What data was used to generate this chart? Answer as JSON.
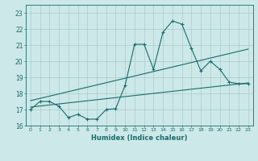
{
  "xlabel": "Humidex (Indice chaleur)",
  "bg_color": "#cce8e8",
  "grid_color": "#aacccc",
  "line_color": "#1a6b6b",
  "xlim": [
    -0.5,
    23.5
  ],
  "ylim": [
    16.0,
    23.5
  ],
  "yticks": [
    16,
    17,
    18,
    19,
    20,
    21,
    22,
    23
  ],
  "xticks": [
    0,
    1,
    2,
    3,
    4,
    5,
    6,
    7,
    8,
    9,
    10,
    11,
    12,
    13,
    14,
    15,
    16,
    17,
    18,
    19,
    20,
    21,
    22,
    23
  ],
  "curve1_x": [
    0,
    1,
    2,
    3,
    4,
    5,
    6,
    7,
    8,
    9,
    10,
    11,
    12,
    13,
    14,
    15,
    16,
    17,
    18,
    19,
    20,
    21,
    22,
    23
  ],
  "curve1_y": [
    17.0,
    17.5,
    17.5,
    17.2,
    16.5,
    16.7,
    16.4,
    16.4,
    17.0,
    17.05,
    18.5,
    21.05,
    21.05,
    19.5,
    21.8,
    22.5,
    22.3,
    20.8,
    19.4,
    20.0,
    19.5,
    18.7,
    18.6,
    18.6
  ],
  "line1_x": [
    0,
    23
  ],
  "line1_y": [
    17.55,
    20.75
  ],
  "line2_x": [
    0,
    23
  ],
  "line2_y": [
    17.15,
    18.65
  ]
}
